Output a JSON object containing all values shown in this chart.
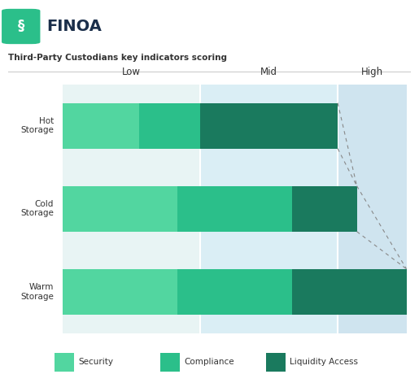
{
  "title": "Third-Party Custodians key indicators scoring",
  "logo_text": "FINOA",
  "columns": [
    "Low",
    "Mid",
    "High"
  ],
  "rows": [
    "Hot\nStorage",
    "Cold\nStorage",
    "Warm\nStorage"
  ],
  "col_bg_colors": [
    "#e8f4f4",
    "#daeef5",
    "#cfe4ef"
  ],
  "bar_colors": {
    "Security": "#52d6a0",
    "Compliance": "#2bbf8a",
    "Liquidity Access": "#1a7a5e"
  },
  "legend_labels": [
    "Security",
    "Compliance",
    "Liquidity Access"
  ],
  "legend_colors": [
    "#52d6a0",
    "#2bbf8a",
    "#1a7a5e"
  ],
  "bars": {
    "Hot Storage": {
      "Security": [
        0,
        1.0
      ],
      "Compliance": [
        1.0,
        1.8
      ],
      "Liquidity Access": [
        1.8,
        3.6
      ]
    },
    "Cold Storage": {
      "Security": [
        0,
        1.5
      ],
      "Compliance": [
        1.5,
        3.0
      ],
      "Liquidity Access": [
        3.0,
        3.85
      ]
    },
    "Warm Storage": {
      "Security": [
        0,
        1.5
      ],
      "Compliance": [
        1.5,
        3.0
      ],
      "Liquidity Access": [
        3.0,
        4.5
      ]
    }
  },
  "col_boundaries": [
    0,
    1.8,
    3.6,
    4.5
  ],
  "bar_height": 0.55,
  "bg_color": "#ffffff",
  "finoa_color": "#1a2e4a",
  "title_color": "#333333",
  "col_header_color": "#333333",
  "dash_color": "#888888",
  "separator_color": "#ffffff"
}
